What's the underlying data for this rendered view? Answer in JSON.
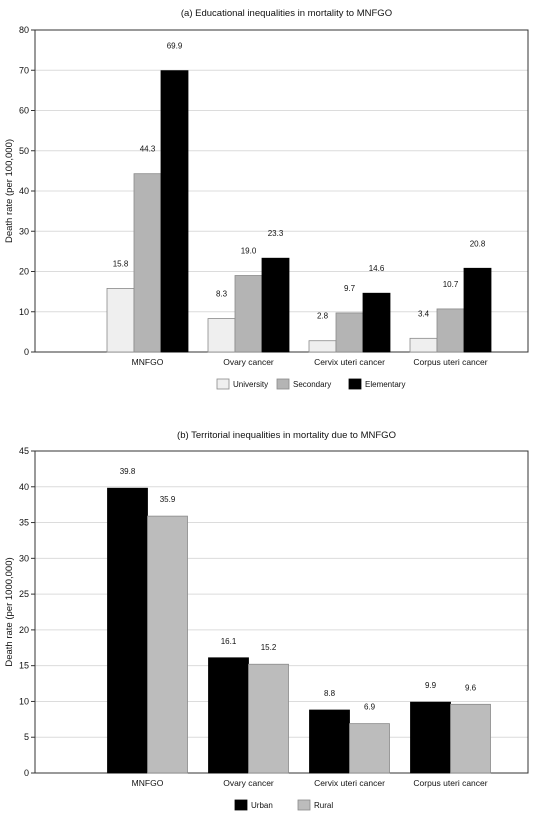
{
  "chart_data": [
    {
      "type": "bar",
      "title": "(a) Educational inequalities in mortality to MNFGO",
      "xlabel": "",
      "ylabel": "Death rate (per 100,000)",
      "ylim": [
        0,
        80
      ],
      "yticks": [
        0,
        10,
        20,
        30,
        40,
        50,
        60,
        70,
        80
      ],
      "grid": true,
      "legend_position": "bottom",
      "categories": [
        "MNFGO",
        "Ovary cancer",
        "Cervix uteri cancer",
        "Corpus uteri cancer"
      ],
      "series": [
        {
          "name": "University",
          "values": [
            15.8,
            8.3,
            2.8,
            3.4
          ],
          "labels": [
            "15.8",
            "8.3",
            "2.8",
            "3.4"
          ],
          "color": "#efefef"
        },
        {
          "name": "Secondary",
          "values": [
            44.3,
            19.0,
            9.7,
            10.7
          ],
          "labels": [
            "44.3",
            "19.0",
            "9.7",
            "10.7"
          ],
          "color": "#b4b4b4"
        },
        {
          "name": "Elementary",
          "values": [
            69.9,
            23.3,
            14.6,
            20.8
          ],
          "labels": [
            "69.9",
            "23.3",
            "14.6",
            "20.8"
          ],
          "color": "#000000"
        }
      ]
    },
    {
      "type": "bar",
      "title": "(b) Territorial inequalities in mortality due to MNFGO",
      "xlabel": "",
      "ylabel": "Death rate (per 1000,000)",
      "ylim": [
        0,
        45
      ],
      "yticks": [
        0,
        5,
        10,
        15,
        20,
        25,
        30,
        35,
        40,
        45
      ],
      "grid": true,
      "legend_position": "bottom",
      "categories": [
        "MNFGO",
        "Ovary cancer",
        "Cervix uteri cancer",
        "Corpus uteri cancer"
      ],
      "series": [
        {
          "name": "Urban",
          "values": [
            39.8,
            16.1,
            8.8,
            9.9
          ],
          "labels": [
            "39.8",
            "16.1",
            "8.8",
            "9.9"
          ],
          "color": "#000000"
        },
        {
          "name": "Rural",
          "values": [
            35.9,
            15.2,
            6.9,
            9.6
          ],
          "labels": [
            "35.9",
            "15.2",
            "6.9",
            "9.6"
          ],
          "color": "#bcbcbc"
        }
      ]
    }
  ]
}
